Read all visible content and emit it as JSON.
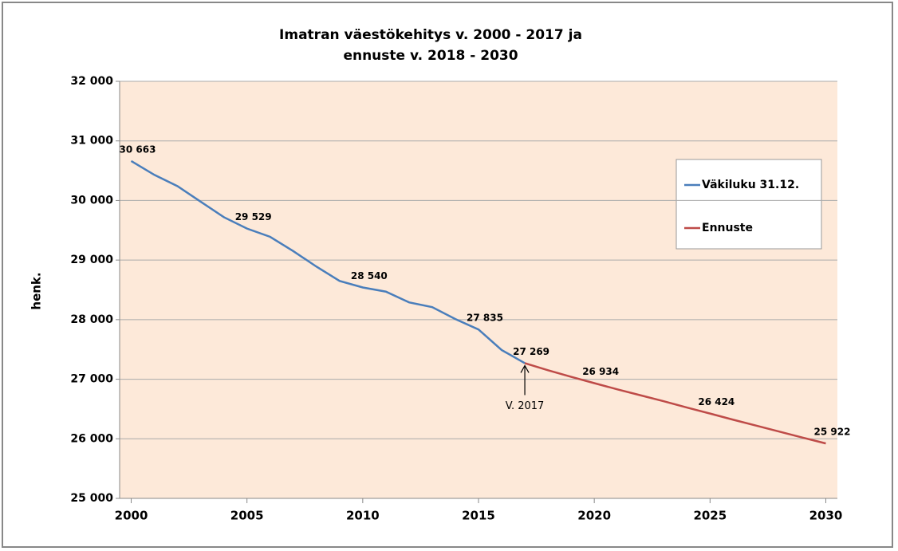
{
  "chart_data": {
    "type": "line",
    "title": [
      "Imatran väestökehitys v. 2000 - 2017 ja",
      "ennuste v. 2018 - 2030"
    ],
    "y_label": "henk.",
    "annotation": "V. 2017",
    "xlim": [
      1999.5,
      2030.5
    ],
    "xticks": [
      2000,
      2005,
      2010,
      2015,
      2020,
      2025,
      2030
    ],
    "ylim": [
      25000,
      32000
    ],
    "yticks": [
      {
        "value": 25000,
        "label": "25 000"
      },
      {
        "value": 26000,
        "label": "26 000"
      },
      {
        "value": 27000,
        "label": "27 000"
      },
      {
        "value": 28000,
        "label": "28 000"
      },
      {
        "value": 29000,
        "label": "29 000"
      },
      {
        "value": 30000,
        "label": "30 000"
      },
      {
        "value": 31000,
        "label": "31 000"
      },
      {
        "value": 32000,
        "label": "32 000"
      }
    ],
    "grid": true,
    "legend": "right",
    "series": [
      {
        "name": "Väkiluku 31.12.",
        "color": "#4a7ebb",
        "x": [
          2000,
          2001,
          2002,
          2003,
          2004,
          2005,
          2006,
          2007,
          2008,
          2009,
          2010,
          2011,
          2012,
          2013,
          2014,
          2015,
          2016,
          2017
        ],
        "values": [
          30663,
          30430,
          30240,
          29980,
          29720,
          29529,
          29390,
          29150,
          28890,
          28650,
          28540,
          28470,
          28290,
          28210,
          28010,
          27835,
          27490,
          27269
        ],
        "value_labels": [
          "30 663",
          null,
          null,
          null,
          null,
          "29 529",
          null,
          null,
          null,
          null,
          "28 540",
          null,
          null,
          null,
          null,
          "27 835",
          null,
          "27 269"
        ]
      },
      {
        "name": "Ennuste",
        "color": "#be4b48",
        "x": [
          2017,
          2018,
          2019,
          2020,
          2021,
          2022,
          2023,
          2024,
          2025,
          2026,
          2027,
          2028,
          2029,
          2030
        ],
        "values": [
          27269,
          27150,
          27040,
          26934,
          26830,
          26730,
          26630,
          26525,
          26424,
          26320,
          26220,
          26120,
          26020,
          25922
        ],
        "value_labels": [
          null,
          null,
          null,
          "26 934",
          null,
          null,
          null,
          null,
          "26 424",
          null,
          null,
          null,
          null,
          "25 922"
        ]
      }
    ]
  }
}
